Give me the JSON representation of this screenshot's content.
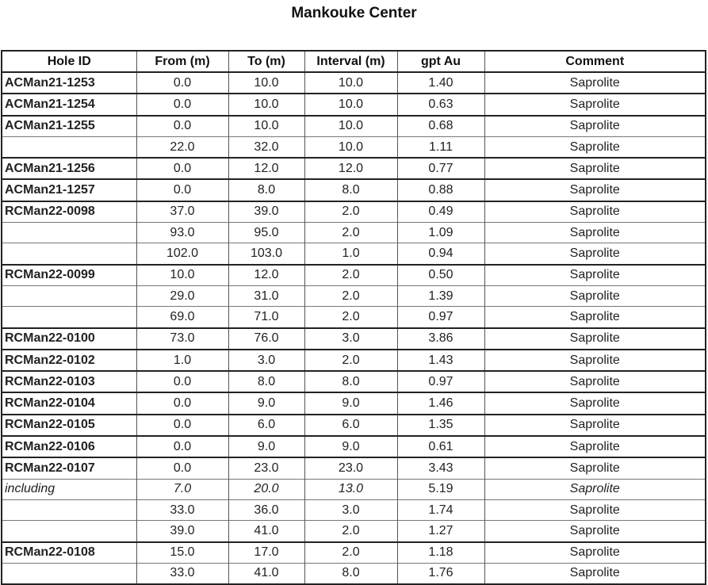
{
  "title": "Mankouke Center",
  "table": {
    "columns": [
      "Hole ID",
      "From (m)",
      "To (m)",
      "Interval (m)",
      "gpt Au",
      "Comment"
    ],
    "rows": [
      {
        "hole_id": "ACMan21-1253",
        "from": "0.0",
        "to": "10.0",
        "interval": "10.0",
        "gpt_au": "1.40",
        "comment": "Saprolite",
        "group_start": true
      },
      {
        "hole_id": "ACMan21-1254",
        "from": "0.0",
        "to": "10.0",
        "interval": "10.0",
        "gpt_au": "0.63",
        "comment": "Saprolite",
        "group_start": true
      },
      {
        "hole_id": "ACMan21-1255",
        "from": "0.0",
        "to": "10.0",
        "interval": "10.0",
        "gpt_au": "0.68",
        "comment": "Saprolite",
        "group_start": true
      },
      {
        "hole_id": "",
        "from": "22.0",
        "to": "32.0",
        "interval": "10.0",
        "gpt_au": "1.11",
        "comment": "Saprolite"
      },
      {
        "hole_id": "ACMan21-1256",
        "from": "0.0",
        "to": "12.0",
        "interval": "12.0",
        "gpt_au": "0.77",
        "comment": "Saprolite",
        "group_start": true
      },
      {
        "hole_id": "ACMan21-1257",
        "from": "0.0",
        "to": "8.0",
        "interval": "8.0",
        "gpt_au": "0.88",
        "comment": "Saprolite",
        "group_start": true
      },
      {
        "hole_id": "RCMan22-0098",
        "from": "37.0",
        "to": "39.0",
        "interval": "2.0",
        "gpt_au": "0.49",
        "comment": "Saprolite",
        "group_start": true
      },
      {
        "hole_id": "",
        "from": "93.0",
        "to": "95.0",
        "interval": "2.0",
        "gpt_au": "1.09",
        "comment": "Saprolite"
      },
      {
        "hole_id": "",
        "from": "102.0",
        "to": "103.0",
        "interval": "1.0",
        "gpt_au": "0.94",
        "comment": "Saprolite"
      },
      {
        "hole_id": "RCMan22-0099",
        "from": "10.0",
        "to": "12.0",
        "interval": "2.0",
        "gpt_au": "0.50",
        "comment": "Saprolite",
        "group_start": true
      },
      {
        "hole_id": "",
        "from": "29.0",
        "to": "31.0",
        "interval": "2.0",
        "gpt_au": "1.39",
        "comment": "Saprolite"
      },
      {
        "hole_id": "",
        "from": "69.0",
        "to": "71.0",
        "interval": "2.0",
        "gpt_au": "0.97",
        "comment": "Saprolite"
      },
      {
        "hole_id": "RCMan22-0100",
        "from": "73.0",
        "to": "76.0",
        "interval": "3.0",
        "gpt_au": "3.86",
        "comment": "Saprolite",
        "group_start": true
      },
      {
        "hole_id": "RCMan22-0102",
        "from": "1.0",
        "to": "3.0",
        "interval": "2.0",
        "gpt_au": "1.43",
        "comment": "Saprolite",
        "group_start": true
      },
      {
        "hole_id": "RCMan22-0103",
        "from": "0.0",
        "to": "8.0",
        "interval": "8.0",
        "gpt_au": "0.97",
        "comment": "Saprolite",
        "group_start": true
      },
      {
        "hole_id": "RCMan22-0104",
        "from": "0.0",
        "to": "9.0",
        "interval": "9.0",
        "gpt_au": "1.46",
        "comment": "Saprolite",
        "group_start": true
      },
      {
        "hole_id": "RCMan22-0105",
        "from": "0.0",
        "to": "6.0",
        "interval": "6.0",
        "gpt_au": "1.35",
        "comment": "Saprolite",
        "group_start": true
      },
      {
        "hole_id": "RCMan22-0106",
        "from": "0.0",
        "to": "9.0",
        "interval": "9.0",
        "gpt_au": "0.61",
        "comment": "Saprolite",
        "group_start": true
      },
      {
        "hole_id": "RCMan22-0107",
        "from": "0.0",
        "to": "23.0",
        "interval": "23.0",
        "gpt_au": "3.43",
        "comment": "Saprolite",
        "group_start": true
      },
      {
        "hole_id": "including",
        "from": "7.0",
        "to": "20.0",
        "interval": "13.0",
        "gpt_au": "5.19",
        "comment": "Saprolite",
        "italic": true
      },
      {
        "hole_id": "",
        "from": "33.0",
        "to": "36.0",
        "interval": "3.0",
        "gpt_au": "1.74",
        "comment": "Saprolite"
      },
      {
        "hole_id": "",
        "from": "39.0",
        "to": "41.0",
        "interval": "2.0",
        "gpt_au": "1.27",
        "comment": "Saprolite"
      },
      {
        "hole_id": "RCMan22-0108",
        "from": "15.0",
        "to": "17.0",
        "interval": "2.0",
        "gpt_au": "1.18",
        "comment": "Saprolite",
        "group_start": true
      },
      {
        "hole_id": "",
        "from": "33.0",
        "to": "41.0",
        "interval": "8.0",
        "gpt_au": "1.76",
        "comment": "Saprolite"
      }
    ]
  }
}
